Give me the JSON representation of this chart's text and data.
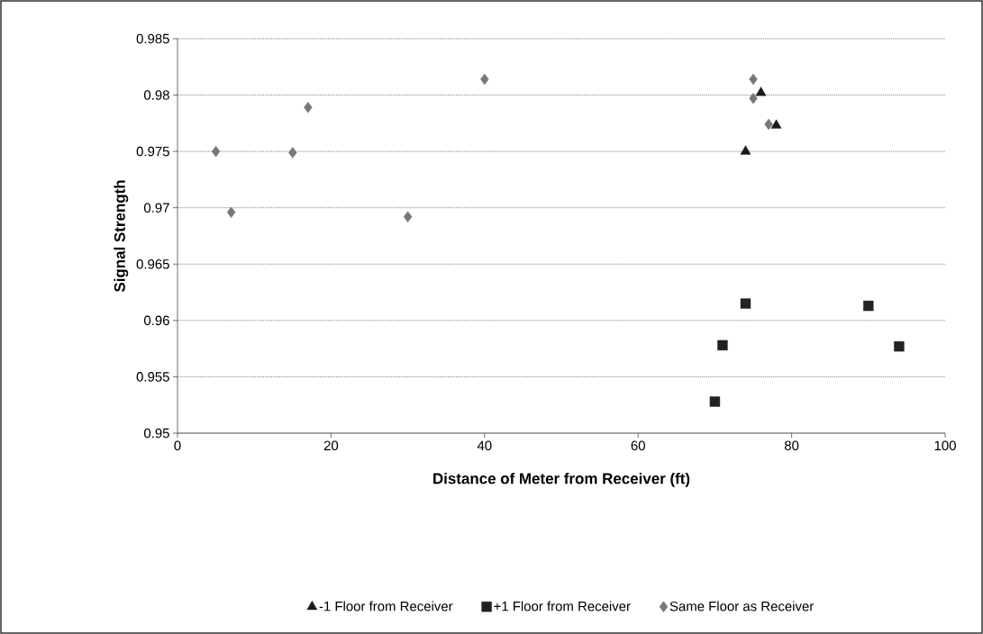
{
  "chart_data": {
    "type": "scatter",
    "xlabel": "Distance of Meter from Receiver (ft)",
    "ylabel": "Signal Strength",
    "xlim": [
      0,
      100
    ],
    "xticks": [
      0,
      20,
      40,
      60,
      80,
      100
    ],
    "ylim": [
      0.95,
      0.985
    ],
    "yticks": [
      0.95,
      0.955,
      0.96,
      0.965,
      0.97,
      0.975,
      0.98,
      0.985
    ],
    "grid": "y",
    "legend": "bottom",
    "series": [
      {
        "name": "-1 Floor from Receiver",
        "color": "#1a1a1a",
        "marker": "triangle",
        "x": [
          76,
          78,
          74
        ],
        "values": [
          0.9802,
          0.9773,
          0.975
        ]
      },
      {
        "name": "+1 Floor from Receiver",
        "color": "#222222",
        "marker": "square",
        "x": [
          74,
          90,
          71,
          94,
          70
        ],
        "values": [
          0.9615,
          0.9613,
          0.9578,
          0.9577,
          0.9528
        ]
      },
      {
        "name": "Same Floor as Receiver",
        "color": "#777777",
        "marker": "diamond",
        "x": [
          5,
          7,
          15,
          17,
          30,
          40,
          75,
          75,
          77
        ],
        "values": [
          0.975,
          0.9696,
          0.9749,
          0.9789,
          0.9692,
          0.9814,
          0.9814,
          0.9797,
          0.9774
        ]
      }
    ]
  }
}
